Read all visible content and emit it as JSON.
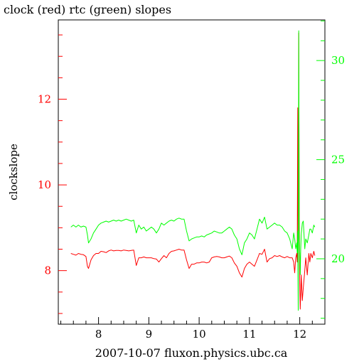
{
  "chart_data": {
    "type": "line",
    "title": "clock (red) rtc (green) slopes",
    "xlabel": "2007-10-07 fluxon.physics.ubc.ca",
    "ylabel": "clockslope",
    "xlim": [
      7.2,
      12.5
    ],
    "ylim_left": [
      6.75,
      13.85
    ],
    "ylim_right": [
      16.7,
      32.05
    ],
    "x_ticks": [
      "8",
      "9",
      "10",
      "11",
      "12"
    ],
    "y_ticks_left": [
      "8",
      "10",
      "12"
    ],
    "y_ticks_right": [
      "20",
      "25",
      "30"
    ],
    "colors": {
      "clock": "#ff0000",
      "rtc": "#00ff00",
      "axes": "#000000"
    },
    "series": [
      {
        "name": "clock",
        "axis": "left",
        "x": [
          7.45,
          7.5,
          7.55,
          7.6,
          7.65,
          7.7,
          7.75,
          7.78,
          7.8,
          7.85,
          7.9,
          7.95,
          8.0,
          8.05,
          8.1,
          8.15,
          8.2,
          8.25,
          8.3,
          8.35,
          8.4,
          8.45,
          8.5,
          8.55,
          8.6,
          8.65,
          8.7,
          8.75,
          8.8,
          8.85,
          8.9,
          8.95,
          9.0,
          9.05,
          9.1,
          9.15,
          9.2,
          9.25,
          9.3,
          9.35,
          9.4,
          9.45,
          9.5,
          9.55,
          9.6,
          9.65,
          9.7,
          9.75,
          9.8,
          9.85,
          9.9,
          9.95,
          10.0,
          10.05,
          10.1,
          10.15,
          10.2,
          10.25,
          10.3,
          10.35,
          10.4,
          10.45,
          10.5,
          10.55,
          10.6,
          10.65,
          10.7,
          10.75,
          10.8,
          10.85,
          10.9,
          10.95,
          11.0,
          11.05,
          11.1,
          11.15,
          11.2,
          11.25,
          11.3,
          11.35,
          11.4,
          11.45,
          11.5,
          11.55,
          11.6,
          11.65,
          11.7,
          11.75,
          11.8,
          11.85,
          11.88,
          11.9,
          11.92,
          11.94,
          11.95,
          11.96,
          11.97,
          11.98,
          11.99,
          12.0,
          12.01,
          12.02,
          12.03,
          12.05,
          12.07,
          12.1,
          12.12,
          12.15,
          12.18,
          12.2,
          12.22,
          12.25,
          12.28,
          12.3
        ],
        "y": [
          8.4,
          8.38,
          8.36,
          8.4,
          8.38,
          8.37,
          8.33,
          8.1,
          8.05,
          8.25,
          8.35,
          8.4,
          8.4,
          8.45,
          8.44,
          8.42,
          8.46,
          8.48,
          8.46,
          8.47,
          8.47,
          8.46,
          8.48,
          8.47,
          8.46,
          8.47,
          8.48,
          8.12,
          8.3,
          8.3,
          8.32,
          8.3,
          8.3,
          8.3,
          8.28,
          8.27,
          8.2,
          8.28,
          8.35,
          8.3,
          8.4,
          8.45,
          8.46,
          8.48,
          8.5,
          8.48,
          8.48,
          8.25,
          8.05,
          8.15,
          8.15,
          8.18,
          8.18,
          8.2,
          8.2,
          8.18,
          8.2,
          8.3,
          8.32,
          8.33,
          8.32,
          8.3,
          8.3,
          8.32,
          8.34,
          8.3,
          8.18,
          8.1,
          7.95,
          7.85,
          8.05,
          8.15,
          8.2,
          8.15,
          8.1,
          8.25,
          8.4,
          8.38,
          8.5,
          8.2,
          8.28,
          8.3,
          8.35,
          8.33,
          8.35,
          8.32,
          8.3,
          8.33,
          8.3,
          8.3,
          8.2,
          7.95,
          8.3,
          8.4,
          8.2,
          11.8,
          8.4,
          13.55,
          9.5,
          7.7,
          7.1,
          7.5,
          7.9,
          7.3,
          7.6,
          8.0,
          8.3,
          7.9,
          8.4,
          8.2,
          8.4,
          8.3,
          8.45,
          8.35
        ]
      },
      {
        "name": "rtc",
        "axis": "right",
        "x": [
          7.45,
          7.5,
          7.55,
          7.6,
          7.65,
          7.7,
          7.75,
          7.78,
          7.8,
          7.85,
          7.9,
          7.95,
          8.0,
          8.05,
          8.1,
          8.15,
          8.2,
          8.25,
          8.3,
          8.35,
          8.4,
          8.45,
          8.5,
          8.55,
          8.6,
          8.65,
          8.7,
          8.75,
          8.8,
          8.85,
          8.9,
          8.95,
          9.0,
          9.05,
          9.1,
          9.15,
          9.2,
          9.25,
          9.3,
          9.35,
          9.4,
          9.45,
          9.5,
          9.55,
          9.6,
          9.65,
          9.7,
          9.75,
          9.8,
          9.85,
          9.9,
          9.95,
          10.0,
          10.05,
          10.1,
          10.15,
          10.2,
          10.25,
          10.3,
          10.35,
          10.4,
          10.45,
          10.5,
          10.55,
          10.6,
          10.65,
          10.7,
          10.75,
          10.8,
          10.85,
          10.9,
          10.95,
          11.0,
          11.05,
          11.1,
          11.15,
          11.2,
          11.25,
          11.3,
          11.35,
          11.4,
          11.45,
          11.5,
          11.55,
          11.6,
          11.65,
          11.7,
          11.75,
          11.8,
          11.85,
          11.88,
          11.9,
          11.92,
          11.94,
          11.95,
          11.96,
          11.97,
          11.98,
          11.99,
          12.0,
          12.01,
          12.02,
          12.03,
          12.05,
          12.07,
          12.1,
          12.12,
          12.15,
          12.18,
          12.2,
          12.22,
          12.25,
          12.28,
          12.3
        ],
        "y": [
          21.6,
          21.7,
          21.6,
          21.7,
          21.6,
          21.65,
          21.6,
          21.2,
          20.8,
          21.0,
          21.3,
          21.5,
          21.7,
          21.8,
          21.85,
          21.9,
          21.85,
          21.9,
          21.95,
          21.9,
          21.95,
          21.9,
          21.95,
          22.0,
          21.95,
          21.9,
          21.95,
          21.3,
          21.7,
          21.5,
          21.6,
          21.4,
          21.5,
          21.6,
          21.5,
          21.3,
          21.5,
          21.8,
          21.7,
          21.8,
          21.9,
          21.95,
          21.9,
          22.0,
          22.05,
          22.0,
          22.0,
          21.4,
          20.9,
          21.0,
          21.05,
          21.1,
          21.1,
          21.15,
          21.1,
          21.2,
          21.25,
          21.3,
          21.4,
          21.35,
          21.3,
          21.3,
          21.4,
          21.5,
          21.6,
          21.5,
          21.2,
          21.0,
          20.5,
          20.2,
          20.8,
          21.0,
          21.3,
          21.2,
          21.0,
          21.5,
          22.0,
          21.8,
          22.1,
          21.5,
          21.6,
          21.7,
          21.8,
          21.7,
          21.7,
          21.6,
          21.4,
          21.3,
          21.0,
          20.5,
          21.3,
          21.0,
          20.5,
          20.8,
          20.3,
          21.4,
          17.4,
          31.5,
          21.0,
          20.3,
          19.2,
          20.5,
          21.2,
          21.8,
          21.9,
          20.5,
          21.0,
          20.8,
          21.2,
          21.5,
          21.5,
          21.3,
          21.7,
          21.6
        ]
      }
    ]
  }
}
